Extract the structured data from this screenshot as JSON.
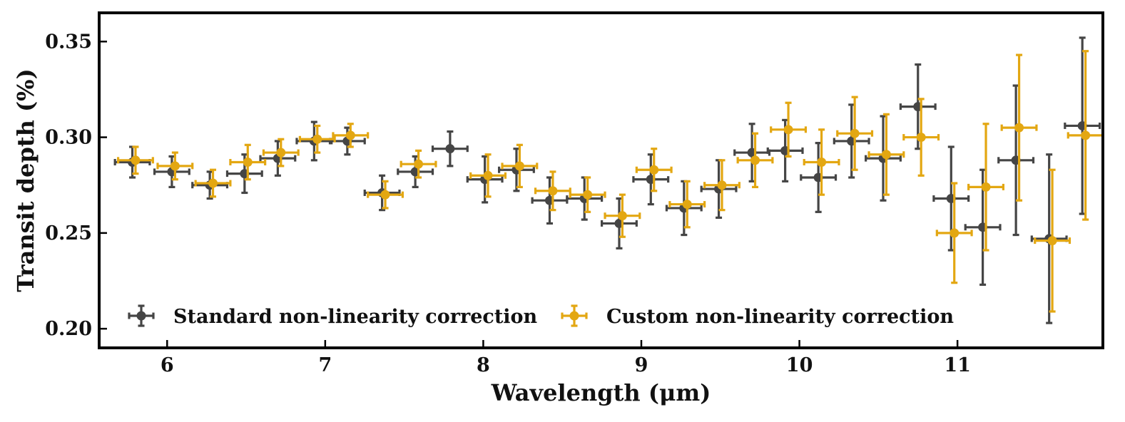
{
  "chart_data": {
    "type": "scatter",
    "title": "",
    "xlabel": "Wavelength (μm)",
    "ylabel": "Transit depth (%)",
    "xlim": [
      5.57,
      11.92
    ],
    "ylim": [
      0.19,
      0.365
    ],
    "xticks": [
      6,
      7,
      8,
      9,
      10,
      11
    ],
    "yticks": [
      0.2,
      0.25,
      0.3,
      0.35
    ],
    "xtick_labels": [
      "6",
      "7",
      "8",
      "9",
      "10",
      "11"
    ],
    "ytick_labels": [
      "0.20",
      "0.25",
      "0.30",
      "0.35"
    ],
    "grid": false,
    "legend_position": "bottom-left",
    "series": [
      {
        "name": "Standard non-linearity correction",
        "color": "#454545",
        "x_halfwidth": 0.11,
        "points": [
          {
            "x": 5.78,
            "y": 0.287,
            "yerr": 0.008
          },
          {
            "x": 6.03,
            "y": 0.282,
            "yerr": 0.008
          },
          {
            "x": 6.27,
            "y": 0.275,
            "yerr": 0.007
          },
          {
            "x": 6.49,
            "y": 0.281,
            "yerr": 0.01
          },
          {
            "x": 6.7,
            "y": 0.289,
            "yerr": 0.009
          },
          {
            "x": 6.93,
            "y": 0.298,
            "yerr": 0.01
          },
          {
            "x": 7.14,
            "y": 0.298,
            "yerr": 0.007
          },
          {
            "x": 7.36,
            "y": 0.271,
            "yerr": 0.009
          },
          {
            "x": 7.57,
            "y": 0.282,
            "yerr": 0.008
          },
          {
            "x": 7.79,
            "y": 0.294,
            "yerr": 0.009
          },
          {
            "x": 8.01,
            "y": 0.278,
            "yerr": 0.012
          },
          {
            "x": 8.21,
            "y": 0.283,
            "yerr": 0.011
          },
          {
            "x": 8.42,
            "y": 0.267,
            "yerr": 0.012
          },
          {
            "x": 8.64,
            "y": 0.268,
            "yerr": 0.011
          },
          {
            "x": 8.86,
            "y": 0.255,
            "yerr": 0.013
          },
          {
            "x": 9.06,
            "y": 0.278,
            "yerr": 0.013
          },
          {
            "x": 9.27,
            "y": 0.263,
            "yerr": 0.014
          },
          {
            "x": 9.49,
            "y": 0.273,
            "yerr": 0.015
          },
          {
            "x": 9.7,
            "y": 0.292,
            "yerr": 0.015
          },
          {
            "x": 9.91,
            "y": 0.293,
            "yerr": 0.016
          },
          {
            "x": 10.12,
            "y": 0.279,
            "yerr": 0.018
          },
          {
            "x": 10.33,
            "y": 0.298,
            "yerr": 0.019
          },
          {
            "x": 10.53,
            "y": 0.289,
            "yerr": 0.022
          },
          {
            "x": 10.75,
            "y": 0.316,
            "yerr": 0.022
          },
          {
            "x": 10.96,
            "y": 0.268,
            "yerr": 0.027
          },
          {
            "x": 11.16,
            "y": 0.253,
            "yerr": 0.03
          },
          {
            "x": 11.37,
            "y": 0.288,
            "yerr": 0.039
          },
          {
            "x": 11.58,
            "y": 0.247,
            "yerr": 0.044
          },
          {
            "x": 11.79,
            "y": 0.306,
            "yerr": 0.046
          }
        ]
      },
      {
        "name": "Custom non-linearity correction",
        "color": "#E3A712",
        "x_halfwidth": 0.11,
        "points": [
          {
            "x": 5.8,
            "y": 0.288,
            "yerr": 0.007
          },
          {
            "x": 6.05,
            "y": 0.285,
            "yerr": 0.007
          },
          {
            "x": 6.29,
            "y": 0.276,
            "yerr": 0.007
          },
          {
            "x": 6.51,
            "y": 0.287,
            "yerr": 0.009
          },
          {
            "x": 6.72,
            "y": 0.292,
            "yerr": 0.007
          },
          {
            "x": 6.95,
            "y": 0.299,
            "yerr": 0.007
          },
          {
            "x": 7.16,
            "y": 0.301,
            "yerr": 0.006
          },
          {
            "x": 7.38,
            "y": 0.27,
            "yerr": 0.007
          },
          {
            "x": 7.59,
            "y": 0.286,
            "yerr": 0.007
          },
          {
            "x": 8.03,
            "y": 0.28,
            "yerr": 0.011
          },
          {
            "x": 8.23,
            "y": 0.285,
            "yerr": 0.011
          },
          {
            "x": 8.44,
            "y": 0.272,
            "yerr": 0.01
          },
          {
            "x": 8.66,
            "y": 0.27,
            "yerr": 0.009
          },
          {
            "x": 8.88,
            "y": 0.259,
            "yerr": 0.011
          },
          {
            "x": 9.08,
            "y": 0.283,
            "yerr": 0.011
          },
          {
            "x": 9.29,
            "y": 0.265,
            "yerr": 0.012
          },
          {
            "x": 9.51,
            "y": 0.275,
            "yerr": 0.013
          },
          {
            "x": 9.72,
            "y": 0.288,
            "yerr": 0.014
          },
          {
            "x": 9.93,
            "y": 0.304,
            "yerr": 0.014
          },
          {
            "x": 10.14,
            "y": 0.287,
            "yerr": 0.017
          },
          {
            "x": 10.35,
            "y": 0.302,
            "yerr": 0.019
          },
          {
            "x": 10.55,
            "y": 0.291,
            "yerr": 0.021
          },
          {
            "x": 10.77,
            "y": 0.3,
            "yerr": 0.02
          },
          {
            "x": 10.98,
            "y": 0.25,
            "yerr": 0.026
          },
          {
            "x": 11.18,
            "y": 0.274,
            "yerr": 0.033
          },
          {
            "x": 11.39,
            "y": 0.305,
            "yerr": 0.038
          },
          {
            "x": 11.6,
            "y": 0.246,
            "yerr": 0.037
          },
          {
            "x": 11.81,
            "y": 0.301,
            "yerr": 0.044
          }
        ]
      }
    ]
  }
}
